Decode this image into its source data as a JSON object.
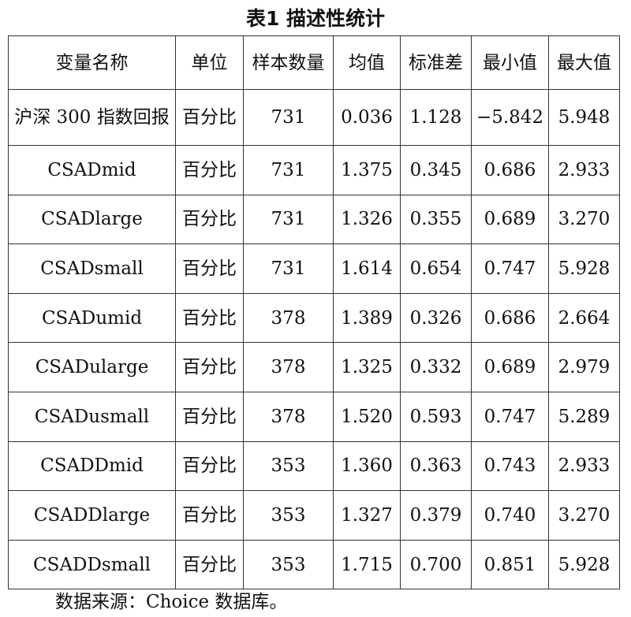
{
  "title": "表1  描述性统计",
  "table": {
    "header": [
      "变量名称",
      "单位",
      "样本数量",
      "均值",
      "标准差",
      "最小值",
      "最大值"
    ],
    "rows": [
      [
        "沪深 300 指数回报",
        "百分比",
        "731",
        "0.036",
        "1.128",
        "−5.842",
        "5.948"
      ],
      [
        "CSADmid",
        "百分比",
        "731",
        "1.375",
        "0.345",
        "0.686",
        "2.933"
      ],
      [
        "CSADlarge",
        "百分比",
        "731",
        "1.326",
        "0.355",
        "0.689",
        "3.270"
      ],
      [
        "CSADsmall",
        "百分比",
        "731",
        "1.614",
        "0.654",
        "0.747",
        "5.928"
      ],
      [
        "CSADumid",
        "百分比",
        "378",
        "1.389",
        "0.326",
        "0.686",
        "2.664"
      ],
      [
        "CSADularge",
        "百分比",
        "378",
        "1.325",
        "0.332",
        "0.689",
        "2.979"
      ],
      [
        "CSADusmall",
        "百分比",
        "378",
        "1.520",
        "0.593",
        "0.747",
        "5.289"
      ],
      [
        "CSADDmid",
        "百分比",
        "353",
        "1.360",
        "0.363",
        "0.743",
        "2.933"
      ],
      [
        "CSADDlarge",
        "百分比",
        "353",
        "1.327",
        "0.379",
        "0.740",
        "3.270"
      ],
      [
        "CSADDsmall",
        "百分比",
        "353",
        "1.715",
        "0.700",
        "0.851",
        "5.928"
      ]
    ]
  },
  "source": "数据来源：Choice 数据库。"
}
